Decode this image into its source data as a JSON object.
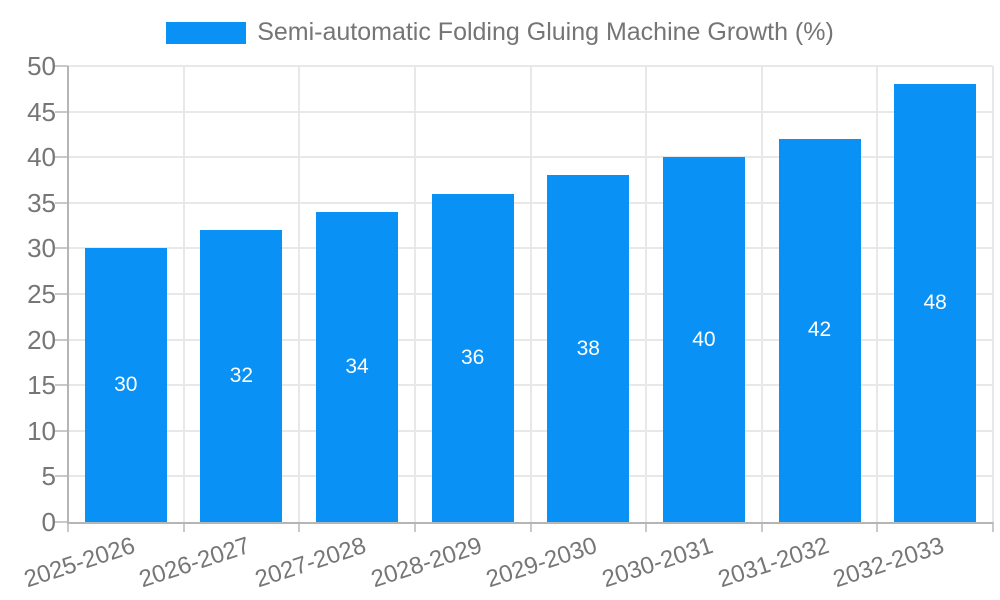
{
  "legend": {
    "label": "Semi-automatic Folding Gluing Machine Growth (%)"
  },
  "chart_data": {
    "type": "bar",
    "title": "Semi-automatic Folding Gluing Machine Growth (%)",
    "categories": [
      "2025-2026",
      "2026-2027",
      "2027-2028",
      "2028-2029",
      "2029-2030",
      "2030-2031",
      "2031-2032",
      "2032-2033"
    ],
    "series": [
      {
        "name": "Semi-automatic Folding Gluing Machine Growth (%)",
        "values": [
          30,
          32,
          34,
          36,
          38,
          40,
          42,
          48
        ]
      }
    ],
    "value_labels": [
      30,
      32,
      34,
      36,
      38,
      40,
      42,
      48
    ],
    "value_label_position": "inside-center",
    "xlabel": "",
    "ylabel": "",
    "ylim": [
      0,
      50
    ],
    "ytick_step": 5,
    "yticks": [
      0,
      5,
      10,
      15,
      20,
      25,
      30,
      35,
      40,
      45,
      50
    ],
    "grid": true,
    "legend_position": "top-center",
    "x_label_rotation_deg": -18,
    "colors": {
      "bar": "#0991f5",
      "grid": "#e8e8e8",
      "axis": "#b5b5b5",
      "tick": "#c9c9c9",
      "axis_label": "#767676",
      "legend_text": "#757575",
      "value_label": "#ffffff",
      "background": "#ffffff"
    }
  }
}
